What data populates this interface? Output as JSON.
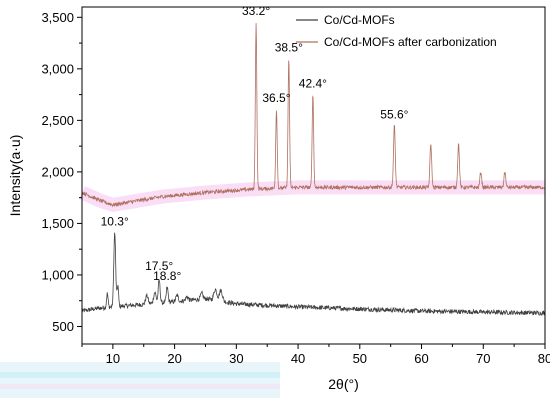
{
  "chart_data": {
    "type": "line",
    "xlabel": "2θ(°)",
    "ylabel": "Intensity(a·u)",
    "xlim": [
      5,
      80
    ],
    "ylim": [
      330,
      3600
    ],
    "x_ticks": [
      10,
      20,
      30,
      40,
      50,
      60,
      70,
      80
    ],
    "y_ticks": [
      500,
      1000,
      1500,
      2000,
      2500,
      3000,
      3500
    ],
    "y_tick_labels": [
      "500",
      "1,000",
      "1,500",
      "2,000",
      "2,500",
      "3,000",
      "3,500"
    ],
    "grid": false,
    "legend_position": "top-right",
    "series": [
      {
        "name": "Co/Cd-MOFs",
        "color": "#404040",
        "baseline": [
          [
            5,
            650
          ],
          [
            8,
            680
          ],
          [
            12,
            700
          ],
          [
            16,
            720
          ],
          [
            20,
            740
          ],
          [
            25,
            770
          ],
          [
            30,
            720
          ],
          [
            40,
            690
          ],
          [
            50,
            670
          ],
          [
            60,
            650
          ],
          [
            70,
            640
          ],
          [
            80,
            630
          ]
        ],
        "noise": 22,
        "peaks": [
          {
            "x": 9.1,
            "y": 820,
            "w": 0.12
          },
          {
            "x": 10.3,
            "y": 1410,
            "w": 0.15
          },
          {
            "x": 10.8,
            "y": 900,
            "w": 0.12
          },
          {
            "x": 15.5,
            "y": 800,
            "w": 0.2
          },
          {
            "x": 16.8,
            "y": 830,
            "w": 0.2
          },
          {
            "x": 17.5,
            "y": 950,
            "w": 0.15
          },
          {
            "x": 18.8,
            "y": 880,
            "w": 0.15
          },
          {
            "x": 20.4,
            "y": 800,
            "w": 0.2
          },
          {
            "x": 22.0,
            "y": 790,
            "w": 0.2
          },
          {
            "x": 24.4,
            "y": 820,
            "w": 0.2
          },
          {
            "x": 26.6,
            "y": 860,
            "w": 0.25
          },
          {
            "x": 27.5,
            "y": 850,
            "w": 0.25
          }
        ]
      },
      {
        "name": "Co/Cd-MOFs after carbonization",
        "color": "#b07060",
        "baseline": [
          [
            5,
            1800
          ],
          [
            8,
            1720
          ],
          [
            10,
            1680
          ],
          [
            12,
            1700
          ],
          [
            18,
            1760
          ],
          [
            25,
            1800
          ],
          [
            32,
            1830
          ],
          [
            40,
            1850
          ],
          [
            50,
            1850
          ],
          [
            60,
            1850
          ],
          [
            70,
            1850
          ],
          [
            80,
            1850
          ]
        ],
        "noise": 18,
        "peaks": [
          {
            "x": 33.2,
            "y": 3450,
            "w": 0.12
          },
          {
            "x": 36.5,
            "y": 2610,
            "w": 0.12
          },
          {
            "x": 38.5,
            "y": 3100,
            "w": 0.12
          },
          {
            "x": 42.4,
            "y": 2760,
            "w": 0.12
          },
          {
            "x": 55.6,
            "y": 2450,
            "w": 0.14
          },
          {
            "x": 61.5,
            "y": 2270,
            "w": 0.14
          },
          {
            "x": 66.0,
            "y": 2270,
            "w": 0.14
          },
          {
            "x": 69.6,
            "y": 2000,
            "w": 0.14
          },
          {
            "x": 73.5,
            "y": 2000,
            "w": 0.14
          }
        ]
      }
    ],
    "annotations": [
      {
        "text": "33.2°",
        "x": 33.2,
        "y": 3520
      },
      {
        "text": "38.5°",
        "x": 38.5,
        "y": 3170
      },
      {
        "text": "36.5°",
        "x": 36.5,
        "y": 2680
      },
      {
        "text": "42.4°",
        "x": 42.4,
        "y": 2820
      },
      {
        "text": "55.6°",
        "x": 55.6,
        "y": 2520
      },
      {
        "text": "10.3°",
        "x": 10.3,
        "y": 1480
      },
      {
        "text": "17.5°",
        "x": 17.5,
        "y": 1050
      },
      {
        "text": "18.8°",
        "x": 18.8,
        "y": 950
      }
    ]
  }
}
